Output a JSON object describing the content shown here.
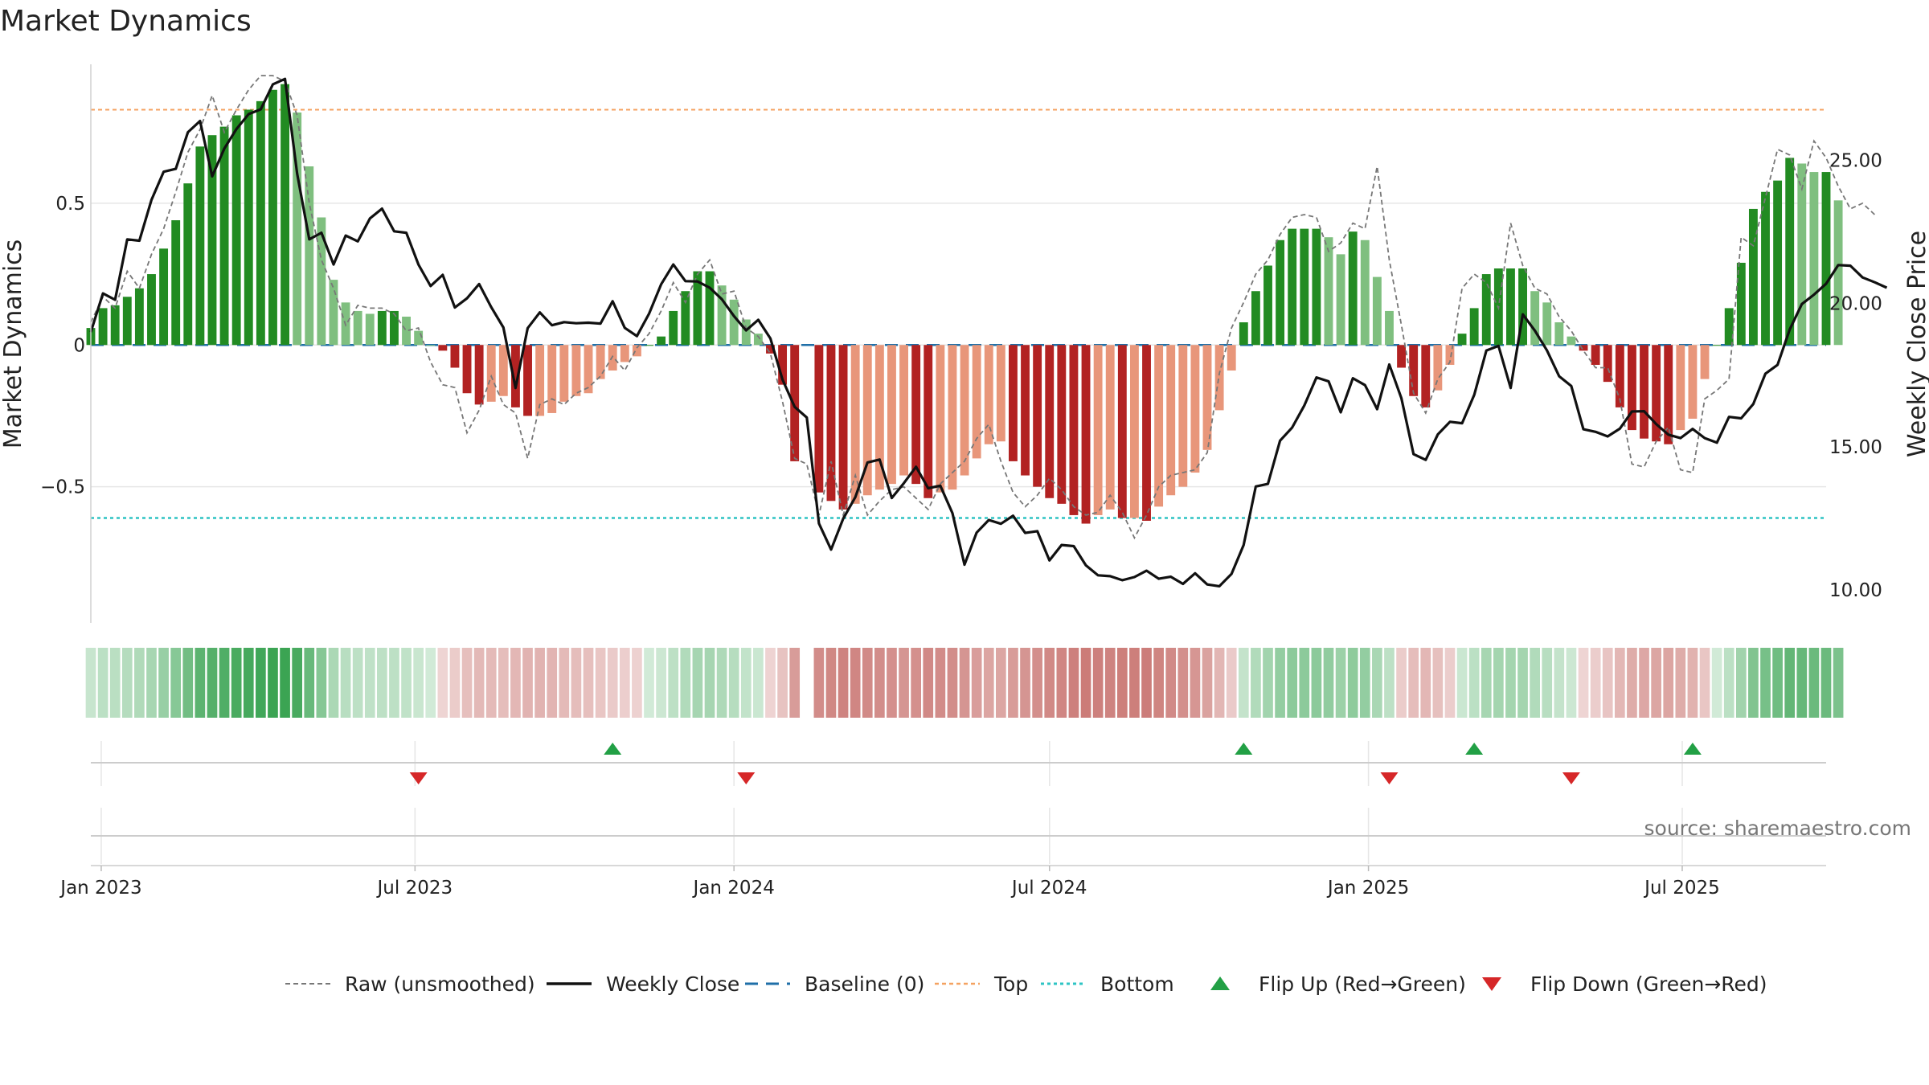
{
  "chart_data": {
    "type": "bar",
    "title": "Market Dynamics",
    "source": "source: sharemaestro.com",
    "y_left": {
      "label": "Market Dynamics",
      "range": [
        -0.98,
        0.99
      ],
      "ticks": [
        0.5,
        0,
        -0.5
      ],
      "tick_labels": [
        "0.5",
        "0",
        "−0.5"
      ]
    },
    "y_right": {
      "label": "Weekly Close Price",
      "range": [
        8.85,
        28.35
      ],
      "ticks": [
        25,
        20,
        15,
        10
      ],
      "tick_labels": [
        "25.00",
        "20.00",
        "15.00",
        "10.00"
      ]
    },
    "x_axis": {
      "start": "2022-12-26",
      "end": "2025-09-22",
      "ticks": [
        {
          "date": "2023-01-01",
          "label": "Jan 2023"
        },
        {
          "date": "2023-07-01",
          "label": "Jul 2023"
        },
        {
          "date": "2024-01-01",
          "label": "Jan 2024"
        },
        {
          "date": "2024-07-01",
          "label": "Jul 2024"
        },
        {
          "date": "2025-01-01",
          "label": "Jan 2025"
        },
        {
          "date": "2025-07-01",
          "label": "Jul 2025"
        }
      ]
    },
    "reference_lines": {
      "top": 0.83,
      "bottom": -0.61,
      "baseline": 0
    },
    "colors": {
      "strong_up": "#228b22",
      "weak_up": "#7fbf7f",
      "strong_down": "#b22222",
      "weak_down": "#e8967a",
      "close": "#111111",
      "raw": "#777777",
      "baseline": "#1f6fa8",
      "top": "#f4a261",
      "bottom": "#2ec4c4",
      "flip_up": "#22a045",
      "flip_down": "#d62728"
    },
    "weeks": {
      "start": "2022-12-26",
      "step_days": 7,
      "missing_indices": [
        59
      ],
      "dynamics": [
        0.06,
        0.13,
        0.14,
        0.17,
        0.2,
        0.25,
        0.34,
        0.44,
        0.57,
        0.7,
        0.74,
        0.77,
        0.81,
        0.83,
        0.86,
        0.9,
        0.92,
        0.82,
        0.63,
        0.45,
        0.23,
        0.15,
        0.12,
        0.11,
        0.12,
        0.12,
        0.1,
        0.05,
        0.0,
        -0.02,
        -0.08,
        -0.17,
        -0.21,
        -0.2,
        -0.18,
        -0.22,
        -0.25,
        -0.25,
        -0.24,
        -0.2,
        -0.18,
        -0.17,
        -0.12,
        -0.09,
        -0.06,
        -0.04,
        0.0,
        0.03,
        0.12,
        0.19,
        0.26,
        0.26,
        0.21,
        0.16,
        0.09,
        0.04,
        -0.03,
        -0.14,
        -0.41,
        0.0,
        -0.52,
        -0.55,
        -0.58,
        -0.56,
        -0.53,
        -0.51,
        -0.49,
        -0.46,
        -0.49,
        -0.54,
        -0.52,
        -0.51,
        -0.46,
        -0.4,
        -0.35,
        -0.34,
        -0.41,
        -0.46,
        -0.5,
        -0.54,
        -0.56,
        -0.6,
        -0.63,
        -0.6,
        -0.58,
        -0.61,
        -0.61,
        -0.62,
        -0.57,
        -0.53,
        -0.5,
        -0.45,
        -0.37,
        -0.23,
        -0.09,
        0.08,
        0.19,
        0.28,
        0.37,
        0.41,
        0.41,
        0.41,
        0.38,
        0.32,
        0.4,
        0.37,
        0.24,
        0.12,
        -0.08,
        -0.18,
        -0.22,
        -0.16,
        -0.07,
        0.04,
        0.13,
        0.25,
        0.27,
        0.27,
        0.27,
        0.19,
        0.15,
        0.08,
        0.03,
        -0.02,
        -0.07,
        -0.13,
        -0.22,
        -0.3,
        -0.33,
        -0.34,
        -0.35,
        -0.3,
        -0.26,
        -0.12,
        0.0,
        0.13,
        0.29,
        0.48,
        0.54,
        0.58,
        0.66,
        0.64,
        0.61,
        0.61,
        0.51
      ],
      "close": [
        19.0,
        20.35,
        20.13,
        22.24,
        22.19,
        23.62,
        24.6,
        24.7,
        25.98,
        26.37,
        24.44,
        25.41,
        26.09,
        26.61,
        26.78,
        27.65,
        27.84,
        24.53,
        22.24,
        22.47,
        21.36,
        22.37,
        22.17,
        22.97,
        23.31,
        22.52,
        22.47,
        21.36,
        20.61,
        21.0,
        19.86,
        20.18,
        20.68,
        19.87,
        19.16,
        17.05,
        19.14,
        19.69,
        19.24,
        19.35,
        19.31,
        19.33,
        19.3,
        20.08,
        19.15,
        18.86,
        19.64,
        20.67,
        21.36,
        20.78,
        20.77,
        20.55,
        20.15,
        19.56,
        19.06,
        19.43,
        18.78,
        17.34,
        16.39,
        16.02,
        12.32,
        11.41,
        12.49,
        13.24,
        14.45,
        14.55,
        13.21,
        13.73,
        14.3,
        13.55,
        13.64,
        12.68,
        10.88,
        12.0,
        12.44,
        12.31,
        12.59,
        11.99,
        12.05,
        11.03,
        11.57,
        11.53,
        10.86,
        10.51,
        10.48,
        10.34,
        10.45,
        10.67,
        10.39,
        10.46,
        10.21,
        10.58,
        10.19,
        10.13,
        10.56,
        11.57,
        13.61,
        13.7,
        15.21,
        15.67,
        16.44,
        17.42,
        17.28,
        16.2,
        17.39,
        17.15,
        16.31,
        17.87,
        16.69,
        14.74,
        14.54,
        15.43,
        15.87,
        15.82,
        16.81,
        18.36,
        18.52,
        17.05,
        19.62,
        19.05,
        18.36,
        17.46,
        17.12,
        15.61,
        15.52,
        15.36,
        15.63,
        16.23,
        16.24,
        15.79,
        15.42,
        15.3,
        15.62,
        15.3,
        15.14,
        16.04,
        15.99,
        16.49,
        17.55,
        17.86,
        19.09,
        19.98,
        20.31,
        20.69,
        21.34,
        21.32,
        20.91,
        20.74,
        20.55
      ],
      "raw": [
        0.08,
        0.17,
        0.13,
        0.26,
        0.2,
        0.32,
        0.41,
        0.54,
        0.68,
        0.76,
        0.88,
        0.75,
        0.83,
        0.9,
        0.95,
        0.95,
        0.93,
        0.81,
        0.5,
        0.3,
        0.2,
        0.07,
        0.14,
        0.13,
        0.13,
        0.11,
        0.05,
        0.06,
        -0.06,
        -0.14,
        -0.15,
        -0.31,
        -0.23,
        -0.11,
        -0.21,
        -0.24,
        -0.4,
        -0.21,
        -0.19,
        -0.21,
        -0.17,
        -0.15,
        -0.11,
        -0.04,
        -0.09,
        -0.01,
        0.04,
        0.12,
        0.22,
        0.15,
        0.25,
        0.3,
        0.18,
        0.19,
        0.06,
        0.03,
        -0.03,
        -0.2,
        -0.4,
        -0.42,
        -0.6,
        -0.41,
        -0.6,
        -0.46,
        -0.6,
        -0.55,
        -0.51,
        -0.5,
        -0.54,
        -0.58,
        -0.49,
        -0.45,
        -0.41,
        -0.33,
        -0.28,
        -0.41,
        -0.52,
        -0.57,
        -0.53,
        -0.47,
        -0.51,
        -0.57,
        -0.6,
        -0.59,
        -0.53,
        -0.59,
        -0.68,
        -0.6,
        -0.5,
        -0.46,
        -0.45,
        -0.44,
        -0.38,
        -0.1,
        0.06,
        0.15,
        0.25,
        0.3,
        0.39,
        0.45,
        0.46,
        0.45,
        0.33,
        0.36,
        0.43,
        0.41,
        0.63,
        0.3,
        0.07,
        -0.17,
        -0.24,
        -0.12,
        -0.06,
        0.2,
        0.25,
        0.22,
        0.13,
        0.43,
        0.28,
        0.2,
        0.18,
        0.1,
        0.05,
        -0.02,
        -0.08,
        -0.08,
        -0.19,
        -0.42,
        -0.43,
        -0.34,
        -0.29,
        -0.44,
        -0.45,
        -0.19,
        -0.16,
        -0.12,
        0.38,
        0.35,
        0.52,
        0.69,
        0.67,
        0.55,
        0.72,
        0.66,
        0.56,
        0.48,
        0.5,
        0.46
      ],
      "flips": [
        {
          "date": "2023-07-03",
          "direction": "down"
        },
        {
          "date": "2023-10-23",
          "direction": "up"
        },
        {
          "date": "2024-01-08",
          "direction": "down"
        },
        {
          "date": "2024-10-21",
          "direction": "up"
        },
        {
          "date": "2025-01-13",
          "direction": "down"
        },
        {
          "date": "2025-03-03",
          "direction": "up"
        },
        {
          "date": "2025-04-28",
          "direction": "down"
        },
        {
          "date": "2025-07-07",
          "direction": "up"
        }
      ]
    }
  },
  "legend": {
    "items": [
      {
        "label": "Raw (unsmoothed)",
        "kind": "raw"
      },
      {
        "label": "Weekly Close",
        "kind": "close"
      },
      {
        "label": "Baseline (0)",
        "kind": "baseline"
      },
      {
        "label": "Top",
        "kind": "top"
      },
      {
        "label": "Bottom",
        "kind": "bottom"
      },
      {
        "label": "Flip Up (Red→Green)",
        "kind": "flip_up"
      },
      {
        "label": "Flip Down (Green→Red)",
        "kind": "flip_down"
      }
    ]
  }
}
